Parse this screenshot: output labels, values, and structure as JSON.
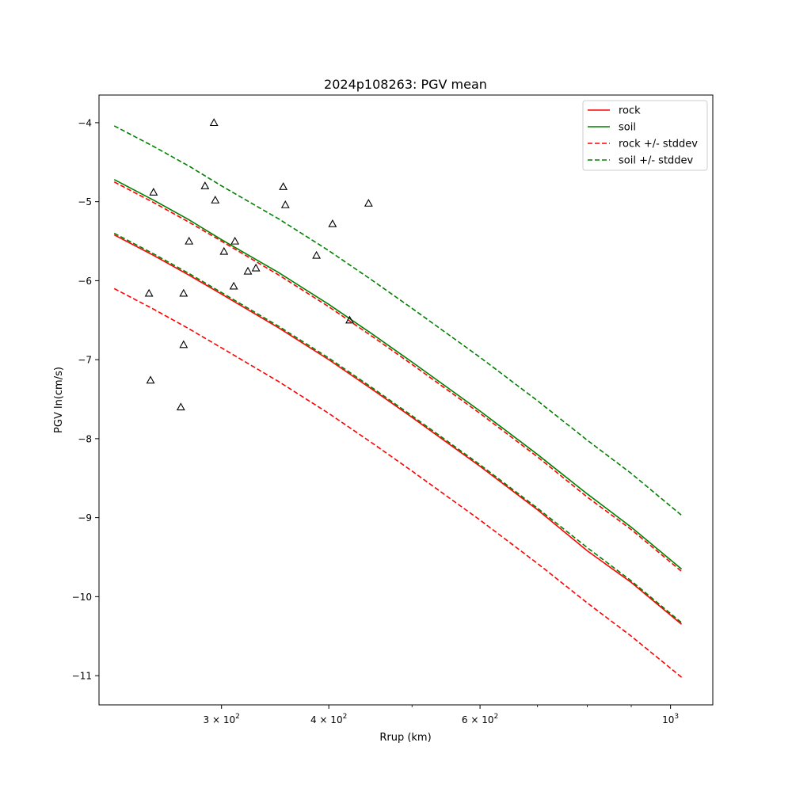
{
  "chart_data": {
    "type": "line",
    "title": "2024p108263: PGV mean",
    "xlabel": "Rrup (km)",
    "ylabel": "PGV ln(cm/s)",
    "x_scale": "log",
    "xlim": [
      216,
      1120
    ],
    "ylim": [
      -11.37,
      -3.65
    ],
    "x_ticks": [
      {
        "value": 300,
        "label": "3 × 10",
        "exp": "2"
      },
      {
        "value": 400,
        "label": "4 × 10",
        "exp": "2"
      },
      {
        "value": 600,
        "label": "6 × 10",
        "exp": "2"
      },
      {
        "value": 1000,
        "label": "10",
        "exp": "3"
      }
    ],
    "x_minor_ticks": [
      500,
      700,
      800,
      900
    ],
    "y_ticks": [
      -11,
      -10,
      -9,
      -8,
      -7,
      -6,
      -5,
      -4
    ],
    "y_tick_labels": [
      "−11",
      "−10",
      "−9",
      "−8",
      "−7",
      "−6",
      "−5",
      "−4"
    ],
    "grid": false,
    "legend_position": "top-right",
    "colors": {
      "rock": "#ff0000",
      "soil": "#008000"
    },
    "legend": [
      {
        "label": "rock",
        "color": "#ff0000",
        "style": "solid"
      },
      {
        "label": "soil",
        "color": "#008000",
        "style": "solid"
      },
      {
        "label": "rock +/- stddev",
        "color": "#ff0000",
        "style": "dashed"
      },
      {
        "label": "soil +/- stddev",
        "color": "#008000",
        "style": "dashed"
      }
    ],
    "x": [
      225,
      250,
      275,
      300,
      350,
      400,
      450,
      500,
      600,
      700,
      800,
      900,
      1030
    ],
    "series": [
      {
        "name": "rock",
        "color": "#ff0000",
        "style": "solid",
        "values": [
          -5.42,
          -5.68,
          -5.93,
          -6.17,
          -6.6,
          -7.0,
          -7.38,
          -7.73,
          -8.35,
          -8.9,
          -9.42,
          -9.82,
          -10.35
        ]
      },
      {
        "name": "soil",
        "color": "#008000",
        "style": "solid",
        "values": [
          -4.72,
          -4.98,
          -5.23,
          -5.48,
          -5.9,
          -6.3,
          -6.68,
          -7.03,
          -7.65,
          -8.2,
          -8.7,
          -9.12,
          -9.65
        ]
      },
      {
        "color": "#ff0000",
        "style": "dashed",
        "values": [
          -4.75,
          -5.01,
          -5.26,
          -5.5,
          -5.93,
          -6.33,
          -6.71,
          -7.06,
          -7.68,
          -8.23,
          -8.74,
          -9.15,
          -9.68
        ]
      },
      {
        "color": "#ff0000",
        "style": "dashed",
        "values": [
          -6.1,
          -6.36,
          -6.61,
          -6.85,
          -7.28,
          -7.68,
          -8.06,
          -8.41,
          -9.03,
          -9.58,
          -10.08,
          -10.5,
          -11.02
        ]
      },
      {
        "color": "#008000",
        "style": "dashed",
        "values": [
          -4.04,
          -4.3,
          -4.55,
          -4.8,
          -5.22,
          -5.62,
          -6.0,
          -6.35,
          -6.97,
          -7.52,
          -8.02,
          -8.44,
          -8.97
        ]
      },
      {
        "color": "#008000",
        "style": "dashed",
        "values": [
          -5.4,
          -5.66,
          -5.91,
          -6.15,
          -6.58,
          -6.98,
          -7.36,
          -7.71,
          -8.33,
          -8.88,
          -9.38,
          -9.8,
          -10.33
        ]
      }
    ],
    "observations": [
      {
        "x": 294,
        "y": -4.0
      },
      {
        "x": 250,
        "y": -4.88
      },
      {
        "x": 287,
        "y": -4.8
      },
      {
        "x": 295,
        "y": -4.98
      },
      {
        "x": 354,
        "y": -4.81
      },
      {
        "x": 356,
        "y": -5.04
      },
      {
        "x": 445,
        "y": -5.02
      },
      {
        "x": 404,
        "y": -5.28
      },
      {
        "x": 275,
        "y": -5.5
      },
      {
        "x": 311,
        "y": -5.5
      },
      {
        "x": 302,
        "y": -5.63
      },
      {
        "x": 387,
        "y": -5.68
      },
      {
        "x": 322,
        "y": -5.88
      },
      {
        "x": 329,
        "y": -5.84
      },
      {
        "x": 310,
        "y": -6.07
      },
      {
        "x": 247,
        "y": -6.16
      },
      {
        "x": 271,
        "y": -6.16
      },
      {
        "x": 423,
        "y": -6.5
      },
      {
        "x": 271,
        "y": -6.81
      },
      {
        "x": 248,
        "y": -7.26
      },
      {
        "x": 269,
        "y": -7.6
      }
    ]
  }
}
